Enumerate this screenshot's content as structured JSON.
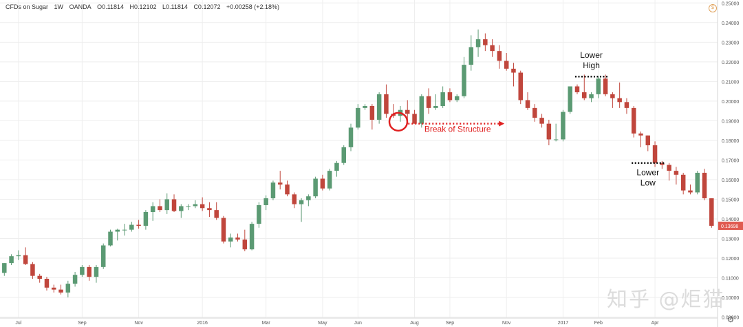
{
  "header": {
    "symbol": "CFDs on Sugar",
    "interval": "1W",
    "source": "OANDA",
    "open": "O0.11814",
    "high": "H0.12102",
    "low": "L0.11814",
    "close": "C0.12072",
    "change": "+0.00258 (+2.18%)"
  },
  "watermark": "知乎 @炬猫",
  "chart_data": {
    "type": "candlestick",
    "title": "",
    "ylim": [
      0.0895,
      0.2515
    ],
    "y_ticks": [
      "0.25000",
      "0.24000",
      "0.23000",
      "0.22000",
      "0.21000",
      "0.20000",
      "0.19000",
      "0.18000",
      "0.17000",
      "0.16000",
      "0.15000",
      "0.14000",
      "0.13000",
      "0.12000",
      "0.11000",
      "0.10000",
      "0.09000"
    ],
    "y_tick_values": [
      0.25,
      0.24,
      0.23,
      0.22,
      0.21,
      0.2,
      0.19,
      0.18,
      0.17,
      0.16,
      0.15,
      0.14,
      0.13,
      0.12,
      0.11,
      0.1,
      0.09
    ],
    "x_labels": [
      {
        "label": "Jul",
        "bar": 2
      },
      {
        "label": "Sep",
        "bar": 11
      },
      {
        "label": "Nov",
        "bar": 19
      },
      {
        "label": "2016",
        "bar": 28
      },
      {
        "label": "Mar",
        "bar": 37
      },
      {
        "label": "May",
        "bar": 45
      },
      {
        "label": "Jun",
        "bar": 50
      },
      {
        "label": "Aug",
        "bar": 58
      },
      {
        "label": "Sep",
        "bar": 63
      },
      {
        "label": "Nov",
        "bar": 71
      },
      {
        "label": "2017",
        "bar": 79
      },
      {
        "label": "Feb",
        "bar": 84
      },
      {
        "label": "Apr",
        "bar": 92
      }
    ],
    "last_price": "0.13698",
    "candles": [
      [
        0.1125,
        0.1175,
        0.111,
        0.1175
      ],
      [
        0.1175,
        0.122,
        0.1165,
        0.121
      ],
      [
        0.121,
        0.124,
        0.119,
        0.1215
      ],
      [
        0.1215,
        0.1255,
        0.1165,
        0.117
      ],
      [
        0.117,
        0.118,
        0.1095,
        0.111
      ],
      [
        0.111,
        0.112,
        0.1075,
        0.1095
      ],
      [
        0.1095,
        0.1105,
        0.1035,
        0.105
      ],
      [
        0.105,
        0.1065,
        0.1025,
        0.104
      ],
      [
        0.104,
        0.1065,
        0.1015,
        0.1025
      ],
      [
        0.1025,
        0.1085,
        0.1,
        0.107
      ],
      [
        0.107,
        0.113,
        0.1055,
        0.1115
      ],
      [
        0.1115,
        0.1165,
        0.1105,
        0.1155
      ],
      [
        0.1155,
        0.1165,
        0.1085,
        0.1105
      ],
      [
        0.1105,
        0.1165,
        0.1075,
        0.1155
      ],
      [
        0.1155,
        0.1275,
        0.1145,
        0.1265
      ],
      [
        0.1265,
        0.1345,
        0.126,
        0.1335
      ],
      [
        0.1335,
        0.135,
        0.129,
        0.1345
      ],
      [
        0.1345,
        0.1375,
        0.1315,
        0.1345
      ],
      [
        0.1345,
        0.1385,
        0.1335,
        0.137
      ],
      [
        0.137,
        0.1395,
        0.135,
        0.1365
      ],
      [
        0.1365,
        0.1445,
        0.1345,
        0.1435
      ],
      [
        0.1435,
        0.1485,
        0.139,
        0.1465
      ],
      [
        0.1465,
        0.15,
        0.1435,
        0.1445
      ],
      [
        0.1445,
        0.153,
        0.1425,
        0.15
      ],
      [
        0.15,
        0.1525,
        0.1435,
        0.144
      ],
      [
        0.144,
        0.1475,
        0.1405,
        0.1465
      ],
      [
        0.1465,
        0.1475,
        0.1445,
        0.1465
      ],
      [
        0.1465,
        0.1495,
        0.1455,
        0.1475
      ],
      [
        0.1475,
        0.151,
        0.144,
        0.1455
      ],
      [
        0.1455,
        0.1485,
        0.141,
        0.1445
      ],
      [
        0.1445,
        0.1485,
        0.1395,
        0.1405
      ],
      [
        0.1405,
        0.1415,
        0.1275,
        0.1285
      ],
      [
        0.1285,
        0.1325,
        0.1255,
        0.1305
      ],
      [
        0.1305,
        0.1325,
        0.1285,
        0.1295
      ],
      [
        0.1295,
        0.1345,
        0.1235,
        0.1245
      ],
      [
        0.1245,
        0.1385,
        0.124,
        0.1375
      ],
      [
        0.1375,
        0.1485,
        0.1355,
        0.147
      ],
      [
        0.147,
        0.152,
        0.1445,
        0.1505
      ],
      [
        0.1505,
        0.1595,
        0.1495,
        0.1585
      ],
      [
        0.1585,
        0.1645,
        0.155,
        0.1575
      ],
      [
        0.1575,
        0.1595,
        0.1515,
        0.1525
      ],
      [
        0.1525,
        0.1535,
        0.1455,
        0.1475
      ],
      [
        0.1475,
        0.1505,
        0.1385,
        0.1495
      ],
      [
        0.1495,
        0.1525,
        0.1465,
        0.1515
      ],
      [
        0.1515,
        0.1615,
        0.1505,
        0.1605
      ],
      [
        0.1605,
        0.1625,
        0.1545,
        0.1555
      ],
      [
        0.1555,
        0.1655,
        0.1545,
        0.1645
      ],
      [
        0.1645,
        0.1695,
        0.1615,
        0.1685
      ],
      [
        0.1685,
        0.1775,
        0.1675,
        0.1765
      ],
      [
        0.1765,
        0.1885,
        0.1745,
        0.1865
      ],
      [
        0.1865,
        0.1985,
        0.1855,
        0.1965
      ],
      [
        0.1965,
        0.1985,
        0.1955,
        0.1975
      ],
      [
        0.1975,
        0.1985,
        0.1855,
        0.1905
      ],
      [
        0.1905,
        0.2045,
        0.1885,
        0.2035
      ],
      [
        0.2035,
        0.2085,
        0.1915,
        0.1935
      ],
      [
        0.1935,
        0.1985,
        0.1915,
        0.1925
      ],
      [
        0.1925,
        0.1975,
        0.1895,
        0.1955
      ],
      [
        0.1955,
        0.2005,
        0.1895,
        0.1935
      ],
      [
        0.1935,
        0.1955,
        0.1885,
        0.1885
      ],
      [
        0.1885,
        0.2035,
        0.1865,
        0.2025
      ],
      [
        0.2025,
        0.2065,
        0.1935,
        0.1965
      ],
      [
        0.1965,
        0.2035,
        0.1955,
        0.1975
      ],
      [
        0.1975,
        0.2075,
        0.1965,
        0.2045
      ],
      [
        0.2045,
        0.2065,
        0.1995,
        0.2005
      ],
      [
        0.2005,
        0.2035,
        0.1995,
        0.2025
      ],
      [
        0.2025,
        0.2225,
        0.2015,
        0.2185
      ],
      [
        0.2185,
        0.2335,
        0.2155,
        0.2275
      ],
      [
        0.2275,
        0.2365,
        0.2225,
        0.2315
      ],
      [
        0.2315,
        0.2345,
        0.2255,
        0.2285
      ],
      [
        0.2285,
        0.2315,
        0.2225,
        0.2255
      ],
      [
        0.2255,
        0.2285,
        0.2165,
        0.2205
      ],
      [
        0.2205,
        0.2245,
        0.2155,
        0.2165
      ],
      [
        0.2165,
        0.2195,
        0.2075,
        0.2145
      ],
      [
        0.2145,
        0.2155,
        0.1985,
        0.2005
      ],
      [
        0.2005,
        0.2045,
        0.1955,
        0.1965
      ],
      [
        0.1965,
        0.1985,
        0.1895,
        0.1915
      ],
      [
        0.1915,
        0.1935,
        0.1865,
        0.1885
      ],
      [
        0.1885,
        0.1905,
        0.1775,
        0.1805
      ],
      [
        0.1805,
        0.1885,
        0.1795,
        0.1805
      ],
      [
        0.1805,
        0.1955,
        0.1795,
        0.1945
      ],
      [
        0.1945,
        0.2075,
        0.1935,
        0.2075
      ],
      [
        0.2075,
        0.2085,
        0.2035,
        0.2045
      ],
      [
        0.2045,
        0.2135,
        0.2005,
        0.2015
      ],
      [
        0.2015,
        0.2045,
        0.1995,
        0.2035
      ],
      [
        0.2035,
        0.2125,
        0.2015,
        0.2115
      ],
      [
        0.2115,
        0.2135,
        0.2025,
        0.2035
      ],
      [
        0.2035,
        0.2045,
        0.1965,
        0.2015
      ],
      [
        0.2015,
        0.2095,
        0.1965,
        0.1995
      ],
      [
        0.1995,
        0.2015,
        0.1935,
        0.1965
      ],
      [
        0.1965,
        0.1975,
        0.1815,
        0.1835
      ],
      [
        0.1835,
        0.1845,
        0.1765,
        0.1825
      ],
      [
        0.1825,
        0.1825,
        0.1745,
        0.1775
      ],
      [
        0.1775,
        0.1795,
        0.1665,
        0.1685
      ],
      [
        0.1685,
        0.1695,
        0.1655,
        0.1675
      ],
      [
        0.1675,
        0.1685,
        0.1595,
        0.1645
      ],
      [
        0.1645,
        0.1665,
        0.1575,
        0.1625
      ],
      [
        0.1625,
        0.1635,
        0.1525,
        0.1545
      ],
      [
        0.1545,
        0.1575,
        0.1525,
        0.1535
      ],
      [
        0.1535,
        0.1645,
        0.1525,
        0.1635
      ],
      [
        0.1635,
        0.1655,
        0.1495,
        0.1505
      ],
      [
        0.1505,
        0.1505,
        0.1355,
        0.1365
      ]
    ],
    "annotations": {
      "break_label": "Break of Structure",
      "lower_high_line1": "Lower",
      "lower_high_line2": "High",
      "lower_low_line1": "Lower",
      "lower_low_line2": "Low",
      "break_circle": {
        "bar": 56,
        "price": 0.1895
      },
      "break_arrow": {
        "from_bar": 57,
        "to_bar": 71,
        "price": 0.1885
      },
      "lower_high_level": {
        "from_bar": 81,
        "to_bar": 85,
        "price": 0.2125
      },
      "lower_low_level": {
        "from_bar": 89,
        "to_bar": 93,
        "price": 0.1685
      }
    },
    "colors": {
      "up": "#5b9a73",
      "down": "#c0463c",
      "grid": "#eeeeee",
      "annotation": "#e02020",
      "level_line": "#111111",
      "price_tag": "#e05a50"
    }
  }
}
